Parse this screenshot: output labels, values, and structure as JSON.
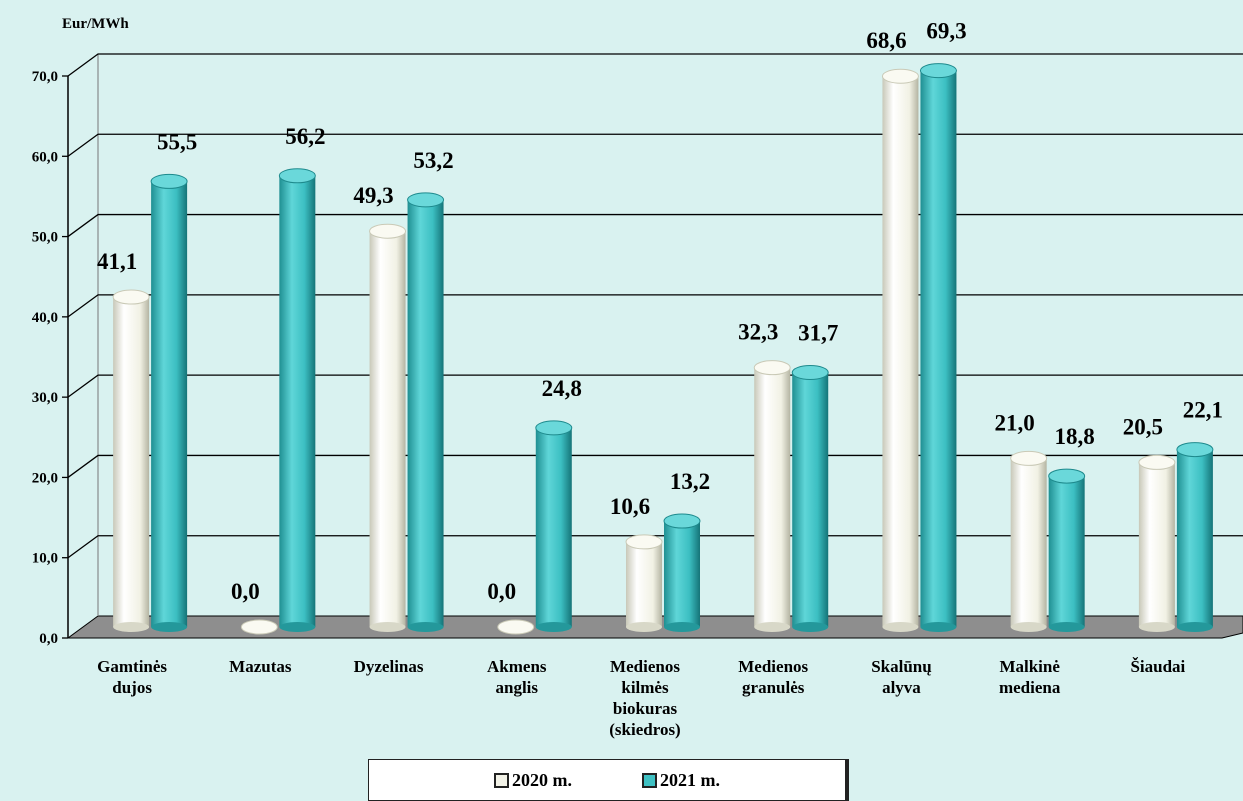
{
  "chart_data": {
    "type": "bar",
    "unit_label": "Eur/MWh",
    "ylim": [
      0,
      70
    ],
    "yticks": [
      "0,0",
      "10,0",
      "20,0",
      "30,0",
      "40,0",
      "50,0",
      "60,0",
      "70,0"
    ],
    "grid": true,
    "legend_position": "bottom",
    "categories": [
      [
        "Gamtinės",
        "dujos"
      ],
      [
        "Mazutas"
      ],
      [
        "Dyzelinas"
      ],
      [
        "Akmens",
        "anglis"
      ],
      [
        "Medienos",
        "kilmės",
        "biokuras",
        "(skiedros)"
      ],
      [
        "Medienos",
        "granulės"
      ],
      [
        "Skalūnų",
        "alyva"
      ],
      [
        "Malkinė",
        "mediena"
      ],
      [
        "Šiaudai"
      ]
    ],
    "series": [
      {
        "name": "2020 m.",
        "color": "#f3f3e8",
        "values": [
          41.1,
          0.0,
          49.3,
          0.0,
          10.6,
          32.3,
          68.6,
          21.0,
          20.5
        ],
        "labels": [
          "41,1",
          "0,0",
          "49,3",
          "0,0",
          "10,6",
          "32,3",
          "68,6",
          "21,0",
          "20,5"
        ]
      },
      {
        "name": "2021 m.",
        "color": "#3fc1c3",
        "values": [
          55.5,
          56.2,
          53.2,
          24.8,
          13.2,
          31.7,
          69.3,
          18.8,
          22.1
        ],
        "labels": [
          "55,5",
          "56,2",
          "53,2",
          "24,8",
          "13,2",
          "31,7",
          "69,3",
          "18,8",
          "22,1"
        ]
      }
    ]
  }
}
